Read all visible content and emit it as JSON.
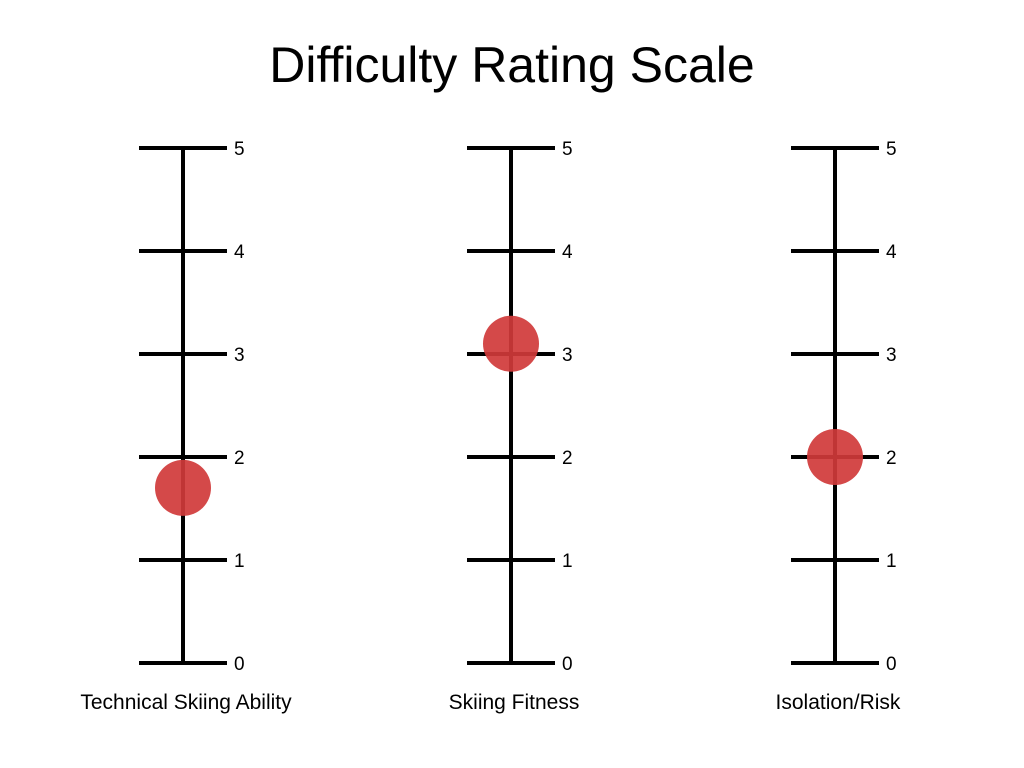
{
  "title": "Difficulty Rating Scale",
  "chart_data": {
    "type": "scatter",
    "title": "Difficulty Rating Scale",
    "ylim": [
      0,
      5
    ],
    "ticks": [
      0,
      1,
      2,
      3,
      4,
      5
    ],
    "grid": false,
    "marker_color": "#d03a3a",
    "line_color": "#000000",
    "scales": [
      {
        "label": "Technical Skiing Ability",
        "value": 1.7
      },
      {
        "label": "Skiing Fitness",
        "value": 3.1
      },
      {
        "label": "Isolation/Risk",
        "value": 2.0
      }
    ]
  }
}
